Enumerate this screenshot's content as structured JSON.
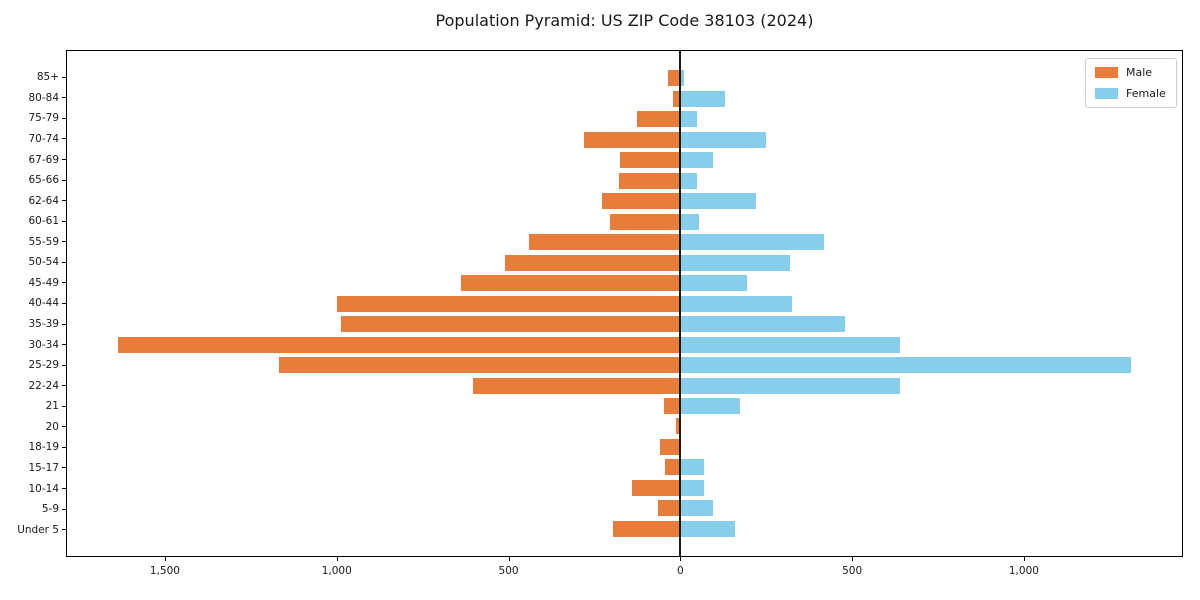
{
  "title": "Population Pyramid: US ZIP Code 38103 (2024)",
  "legend": {
    "male_label": "Male",
    "female_label": "Female"
  },
  "colors": {
    "male": "#e87d3b",
    "female": "#87ceeb",
    "axis": "#000000",
    "zero_line": "#1a1a1a"
  },
  "x_axis": {
    "ticks": [
      {
        "value": -1500,
        "label": "1,500"
      },
      {
        "value": -1000,
        "label": "1,000"
      },
      {
        "value": -500,
        "label": "500"
      },
      {
        "value": 0,
        "label": "0"
      },
      {
        "value": 500,
        "label": "500"
      },
      {
        "value": 1000,
        "label": "1,000"
      }
    ]
  },
  "chart_data": {
    "type": "bar",
    "subtype": "population-pyramid",
    "title": "Population Pyramid: US ZIP Code 38103 (2024)",
    "xlabel": "",
    "ylabel": "",
    "xlim": [
      -1788,
      1463
    ],
    "grid": false,
    "legend_position": "upper right",
    "categories": [
      "85+",
      "80-84",
      "75-79",
      "70-74",
      "67-69",
      "65-66",
      "62-64",
      "60-61",
      "55-59",
      "50-54",
      "45-49",
      "40-44",
      "35-39",
      "30-34",
      "25-29",
      "22-24",
      "21",
      "20",
      "18-19",
      "15-17",
      "10-14",
      "5-9",
      "Under 5"
    ],
    "series": [
      {
        "name": "Male",
        "direction": "left",
        "values": [
          35,
          20,
          125,
          280,
          175,
          180,
          228,
          205,
          440,
          510,
          640,
          1000,
          990,
          1640,
          1170,
          605,
          47,
          13,
          58,
          44,
          140,
          65,
          195
        ]
      },
      {
        "name": "Female",
        "direction": "right",
        "values": [
          12,
          130,
          48,
          250,
          95,
          48,
          220,
          55,
          420,
          320,
          195,
          325,
          480,
          640,
          1315,
          640,
          175,
          0,
          0,
          68,
          70,
          95,
          160
        ]
      }
    ]
  }
}
